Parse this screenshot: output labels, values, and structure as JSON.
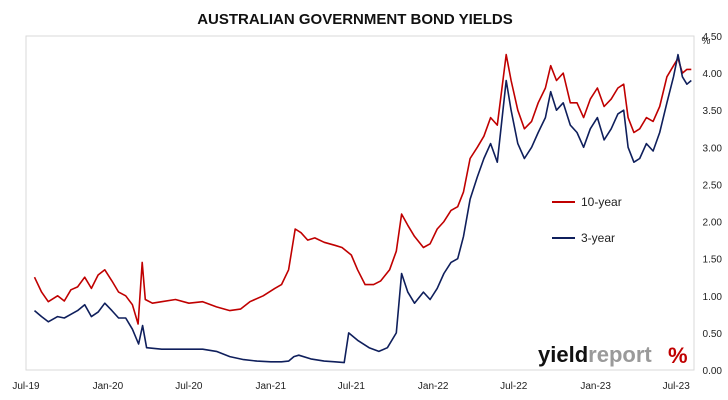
{
  "chart_data": {
    "type": "line",
    "title": "AUSTRALIAN GOVERNMENT BOND YIELDS",
    "unit": "%",
    "ylim": [
      0,
      4.5
    ],
    "y_ticks": [
      "0.00",
      "0.50",
      "1.00",
      "1.50",
      "2.00",
      "2.50",
      "3.00",
      "3.50",
      "4.00",
      "4.50"
    ],
    "x_ticks": [
      {
        "label": "Jul-19",
        "date": "2019-07-01"
      },
      {
        "label": "Jan-20",
        "date": "2020-01-01"
      },
      {
        "label": "Jul-20",
        "date": "2020-07-01"
      },
      {
        "label": "Jan-21",
        "date": "2021-01-01"
      },
      {
        "label": "Jul-21",
        "date": "2021-07-01"
      },
      {
        "label": "Jan-22",
        "date": "2022-01-01"
      },
      {
        "label": "Jul-22",
        "date": "2022-07-01"
      },
      {
        "label": "Jan-23",
        "date": "2023-01-01"
      },
      {
        "label": "Jul-23",
        "date": "2023-07-01"
      }
    ],
    "x_range": [
      "2019-07-01",
      "2023-08-10"
    ],
    "grid": false,
    "legend_position": "middle-right",
    "series": [
      {
        "name": "10-year",
        "color": "#c00000",
        "points": [
          [
            "2019-07-20",
            1.25
          ],
          [
            "2019-08-05",
            1.05
          ],
          [
            "2019-08-20",
            0.92
          ],
          [
            "2019-09-10",
            1.0
          ],
          [
            "2019-09-25",
            0.93
          ],
          [
            "2019-10-10",
            1.08
          ],
          [
            "2019-10-25",
            1.12
          ],
          [
            "2019-11-10",
            1.25
          ],
          [
            "2019-11-25",
            1.1
          ],
          [
            "2019-12-10",
            1.28
          ],
          [
            "2019-12-25",
            1.35
          ],
          [
            "2020-01-10",
            1.2
          ],
          [
            "2020-01-25",
            1.05
          ],
          [
            "2020-02-10",
            1.0
          ],
          [
            "2020-02-25",
            0.88
          ],
          [
            "2020-03-09",
            0.62
          ],
          [
            "2020-03-18",
            1.45
          ],
          [
            "2020-03-25",
            0.95
          ],
          [
            "2020-04-10",
            0.9
          ],
          [
            "2020-05-01",
            0.92
          ],
          [
            "2020-06-01",
            0.95
          ],
          [
            "2020-07-01",
            0.9
          ],
          [
            "2020-08-01",
            0.92
          ],
          [
            "2020-09-01",
            0.85
          ],
          [
            "2020-10-01",
            0.8
          ],
          [
            "2020-10-25",
            0.82
          ],
          [
            "2020-11-15",
            0.92
          ],
          [
            "2020-12-15",
            1.0
          ],
          [
            "2021-01-10",
            1.1
          ],
          [
            "2021-01-25",
            1.15
          ],
          [
            "2021-02-10",
            1.35
          ],
          [
            "2021-02-25",
            1.9
          ],
          [
            "2021-03-10",
            1.85
          ],
          [
            "2021-03-25",
            1.75
          ],
          [
            "2021-04-10",
            1.78
          ],
          [
            "2021-05-01",
            1.72
          ],
          [
            "2021-05-25",
            1.68
          ],
          [
            "2021-06-10",
            1.65
          ],
          [
            "2021-07-01",
            1.55
          ],
          [
            "2021-07-15",
            1.35
          ],
          [
            "2021-08-01",
            1.15
          ],
          [
            "2021-08-20",
            1.15
          ],
          [
            "2021-09-05",
            1.2
          ],
          [
            "2021-09-25",
            1.35
          ],
          [
            "2021-10-10",
            1.6
          ],
          [
            "2021-10-22",
            2.1
          ],
          [
            "2021-11-05",
            1.95
          ],
          [
            "2021-11-20",
            1.8
          ],
          [
            "2021-12-10",
            1.65
          ],
          [
            "2021-12-25",
            1.7
          ],
          [
            "2022-01-10",
            1.9
          ],
          [
            "2022-01-25",
            2.0
          ],
          [
            "2022-02-10",
            2.15
          ],
          [
            "2022-02-25",
            2.2
          ],
          [
            "2022-03-10",
            2.4
          ],
          [
            "2022-03-25",
            2.85
          ],
          [
            "2022-04-10",
            3.0
          ],
          [
            "2022-04-25",
            3.15
          ],
          [
            "2022-05-10",
            3.4
          ],
          [
            "2022-05-25",
            3.3
          ],
          [
            "2022-06-14",
            4.25
          ],
          [
            "2022-06-25",
            3.9
          ],
          [
            "2022-07-10",
            3.5
          ],
          [
            "2022-07-25",
            3.25
          ],
          [
            "2022-08-10",
            3.35
          ],
          [
            "2022-08-25",
            3.6
          ],
          [
            "2022-09-10",
            3.8
          ],
          [
            "2022-09-22",
            4.1
          ],
          [
            "2022-10-05",
            3.9
          ],
          [
            "2022-10-20",
            4.0
          ],
          [
            "2022-11-05",
            3.6
          ],
          [
            "2022-11-20",
            3.6
          ],
          [
            "2022-12-05",
            3.4
          ],
          [
            "2022-12-20",
            3.65
          ],
          [
            "2023-01-05",
            3.8
          ],
          [
            "2023-01-20",
            3.55
          ],
          [
            "2023-02-05",
            3.65
          ],
          [
            "2023-02-20",
            3.8
          ],
          [
            "2023-03-05",
            3.85
          ],
          [
            "2023-03-15",
            3.4
          ],
          [
            "2023-03-28",
            3.2
          ],
          [
            "2023-04-10",
            3.25
          ],
          [
            "2023-04-25",
            3.4
          ],
          [
            "2023-05-10",
            3.35
          ],
          [
            "2023-05-25",
            3.55
          ],
          [
            "2023-06-10",
            3.95
          ],
          [
            "2023-06-25",
            4.1
          ],
          [
            "2023-07-05",
            4.2
          ],
          [
            "2023-07-15",
            4.0
          ],
          [
            "2023-07-25",
            4.05
          ],
          [
            "2023-08-04",
            4.05
          ]
        ]
      },
      {
        "name": "3-year",
        "color": "#0f1f5c",
        "points": [
          [
            "2019-07-20",
            0.8
          ],
          [
            "2019-08-05",
            0.72
          ],
          [
            "2019-08-20",
            0.65
          ],
          [
            "2019-09-10",
            0.72
          ],
          [
            "2019-09-25",
            0.7
          ],
          [
            "2019-10-10",
            0.75
          ],
          [
            "2019-10-25",
            0.8
          ],
          [
            "2019-11-10",
            0.88
          ],
          [
            "2019-11-25",
            0.72
          ],
          [
            "2019-12-10",
            0.78
          ],
          [
            "2019-12-25",
            0.9
          ],
          [
            "2020-01-10",
            0.8
          ],
          [
            "2020-01-25",
            0.7
          ],
          [
            "2020-02-10",
            0.7
          ],
          [
            "2020-02-25",
            0.55
          ],
          [
            "2020-03-10",
            0.35
          ],
          [
            "2020-03-19",
            0.6
          ],
          [
            "2020-03-28",
            0.3
          ],
          [
            "2020-05-01",
            0.28
          ],
          [
            "2020-06-01",
            0.28
          ],
          [
            "2020-07-01",
            0.28
          ],
          [
            "2020-08-01",
            0.28
          ],
          [
            "2020-09-01",
            0.25
          ],
          [
            "2020-10-01",
            0.18
          ],
          [
            "2020-11-01",
            0.14
          ],
          [
            "2020-12-01",
            0.12
          ],
          [
            "2021-01-01",
            0.11
          ],
          [
            "2021-01-25",
            0.11
          ],
          [
            "2021-02-10",
            0.12
          ],
          [
            "2021-02-22",
            0.18
          ],
          [
            "2021-03-05",
            0.2
          ],
          [
            "2021-04-01",
            0.15
          ],
          [
            "2021-05-01",
            0.12
          ],
          [
            "2021-05-25",
            0.11
          ],
          [
            "2021-06-15",
            0.1
          ],
          [
            "2021-06-25",
            0.5
          ],
          [
            "2021-07-15",
            0.4
          ],
          [
            "2021-08-10",
            0.3
          ],
          [
            "2021-09-01",
            0.25
          ],
          [
            "2021-09-20",
            0.3
          ],
          [
            "2021-10-10",
            0.5
          ],
          [
            "2021-10-22",
            1.3
          ],
          [
            "2021-11-05",
            1.05
          ],
          [
            "2021-11-20",
            0.9
          ],
          [
            "2021-12-10",
            1.05
          ],
          [
            "2021-12-25",
            0.95
          ],
          [
            "2022-01-10",
            1.1
          ],
          [
            "2022-01-25",
            1.3
          ],
          [
            "2022-02-10",
            1.45
          ],
          [
            "2022-02-25",
            1.5
          ],
          [
            "2022-03-10",
            1.8
          ],
          [
            "2022-03-25",
            2.3
          ],
          [
            "2022-04-10",
            2.6
          ],
          [
            "2022-04-25",
            2.85
          ],
          [
            "2022-05-10",
            3.05
          ],
          [
            "2022-05-25",
            2.8
          ],
          [
            "2022-06-14",
            3.9
          ],
          [
            "2022-06-25",
            3.5
          ],
          [
            "2022-07-10",
            3.05
          ],
          [
            "2022-07-25",
            2.85
          ],
          [
            "2022-08-10",
            3.0
          ],
          [
            "2022-08-25",
            3.2
          ],
          [
            "2022-09-10",
            3.4
          ],
          [
            "2022-09-22",
            3.75
          ],
          [
            "2022-10-05",
            3.5
          ],
          [
            "2022-10-20",
            3.6
          ],
          [
            "2022-11-05",
            3.3
          ],
          [
            "2022-11-20",
            3.2
          ],
          [
            "2022-12-05",
            3.0
          ],
          [
            "2022-12-20",
            3.25
          ],
          [
            "2023-01-05",
            3.4
          ],
          [
            "2023-01-20",
            3.1
          ],
          [
            "2023-02-05",
            3.25
          ],
          [
            "2023-02-20",
            3.45
          ],
          [
            "2023-03-05",
            3.5
          ],
          [
            "2023-03-15",
            3.0
          ],
          [
            "2023-03-28",
            2.8
          ],
          [
            "2023-04-10",
            2.85
          ],
          [
            "2023-04-25",
            3.05
          ],
          [
            "2023-05-10",
            2.95
          ],
          [
            "2023-05-25",
            3.2
          ],
          [
            "2023-06-10",
            3.6
          ],
          [
            "2023-06-25",
            3.95
          ],
          [
            "2023-07-05",
            4.25
          ],
          [
            "2023-07-15",
            3.95
          ],
          [
            "2023-07-25",
            3.85
          ],
          [
            "2023-08-04",
            3.9
          ]
        ]
      }
    ]
  },
  "branding": {
    "logo_word1": "yield",
    "logo_word2": "report",
    "logo_symbol": "%"
  }
}
